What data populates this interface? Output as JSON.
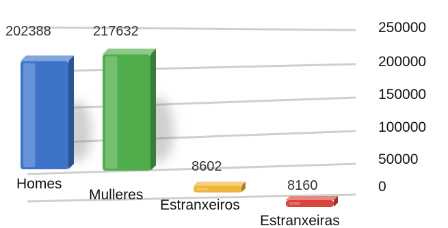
{
  "chart_data": {
    "type": "bar",
    "title": "",
    "xlabel": "",
    "ylabel": "",
    "categories": [
      "Homes",
      "Mulleres",
      "Estranxeiros",
      "Estranxeiras"
    ],
    "values": [
      202388,
      217632,
      8602,
      8160
    ],
    "value_labels": [
      "202388",
      "217632",
      "8602",
      "8160"
    ],
    "ylim": [
      0,
      250000
    ],
    "y_ticks": [
      0,
      50000,
      100000,
      150000,
      200000,
      250000
    ],
    "y_tick_labels": [
      "0",
      "50000",
      "100000",
      "150000",
      "200000",
      "250000"
    ],
    "grid": true,
    "style": "3d-perspective",
    "colors": {
      "Homes": "#3d74c9",
      "Mulleres": "#4fae4b",
      "Estranxeiros": "#f0b43a",
      "Estranxeiras": "#d9463e",
      "gridline": "#cfcfcf"
    }
  }
}
